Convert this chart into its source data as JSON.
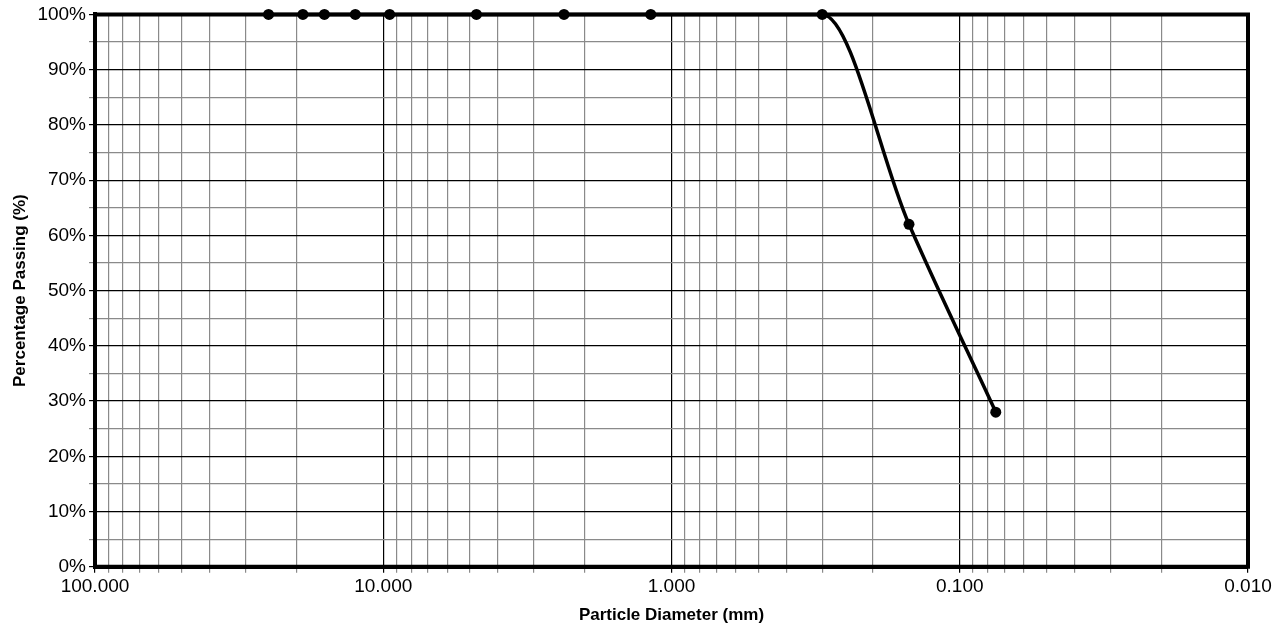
{
  "chart_data": {
    "type": "line",
    "xlabel": "Particle Diameter (mm)",
    "ylabel": "Percentage Passing (%)",
    "log": "x",
    "grid": true,
    "legend": false,
    "marker": "circle",
    "line_style": "solid",
    "xlim": [
      100,
      0.01
    ],
    "xticks": [
      {
        "value": 100,
        "label": "100.000"
      },
      {
        "value": 90,
        "label": null
      },
      {
        "value": 80,
        "label": null
      },
      {
        "value": 70,
        "label": null
      },
      {
        "value": 60,
        "label": null
      },
      {
        "value": 50,
        "label": null
      },
      {
        "value": 40,
        "label": null
      },
      {
        "value": 30,
        "label": null
      },
      {
        "value": 20,
        "label": null
      },
      {
        "value": 10,
        "label": "10.000"
      },
      {
        "value": 9,
        "label": null
      },
      {
        "value": 8,
        "label": null
      },
      {
        "value": 7,
        "label": null
      },
      {
        "value": 6,
        "label": null
      },
      {
        "value": 5,
        "label": null
      },
      {
        "value": 4,
        "label": null
      },
      {
        "value": 3,
        "label": null
      },
      {
        "value": 2,
        "label": null
      },
      {
        "value": 1,
        "label": "1.000"
      },
      {
        "value": 0.9,
        "label": null
      },
      {
        "value": 0.8,
        "label": null
      },
      {
        "value": 0.7,
        "label": null
      },
      {
        "value": 0.6,
        "label": null
      },
      {
        "value": 0.5,
        "label": null
      },
      {
        "value": 0.4,
        "label": null
      },
      {
        "value": 0.3,
        "label": null
      },
      {
        "value": 0.2,
        "label": null
      },
      {
        "value": 0.1,
        "label": "0.100"
      },
      {
        "value": 0.09,
        "label": null
      },
      {
        "value": 0.08,
        "label": null
      },
      {
        "value": 0.07,
        "label": null
      },
      {
        "value": 0.06,
        "label": null
      },
      {
        "value": 0.05,
        "label": null
      },
      {
        "value": 0.04,
        "label": null
      },
      {
        "value": 0.03,
        "label": null
      },
      {
        "value": 0.02,
        "label": null
      },
      {
        "value": 0.01,
        "label": "0.010"
      }
    ],
    "ylim": [
      0,
      100
    ],
    "yticks": [
      {
        "value": 0,
        "label": "0%"
      },
      {
        "value": 5,
        "label": null
      },
      {
        "value": 10,
        "label": "10%"
      },
      {
        "value": 15,
        "label": null
      },
      {
        "value": 20,
        "label": "20%"
      },
      {
        "value": 25,
        "label": null
      },
      {
        "value": 30,
        "label": "30%"
      },
      {
        "value": 35,
        "label": null
      },
      {
        "value": 40,
        "label": "40%"
      },
      {
        "value": 45,
        "label": null
      },
      {
        "value": 50,
        "label": "50%"
      },
      {
        "value": 55,
        "label": null
      },
      {
        "value": 60,
        "label": "60%"
      },
      {
        "value": 65,
        "label": null
      },
      {
        "value": 70,
        "label": "70%"
      },
      {
        "value": 75,
        "label": null
      },
      {
        "value": 80,
        "label": "80%"
      },
      {
        "value": 85,
        "label": null
      },
      {
        "value": 90,
        "label": "90%"
      },
      {
        "value": 95,
        "label": null
      },
      {
        "value": 100,
        "label": "100%"
      }
    ],
    "x": [
      25,
      19,
      16,
      12.5,
      9.5,
      4.75,
      2.36,
      1.18,
      0.3,
      0.15,
      0.075
    ],
    "series": [
      {
        "color": "#000000",
        "values": [
          100,
          100,
          100,
          100,
          100,
          100,
          100,
          100,
          100,
          62,
          28
        ]
      }
    ]
  }
}
